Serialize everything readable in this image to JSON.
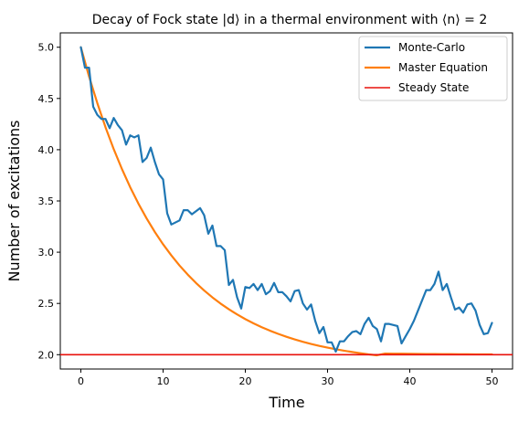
{
  "chart_data": {
    "type": "line",
    "title": "Decay of Fock state |d⟩ in a thermal environment with ⟨n⟩ = 2",
    "xlabel": "Time",
    "ylabel": "Number of excitations",
    "xlim": [
      -2.5,
      52.5
    ],
    "ylim": [
      1.86,
      5.14
    ],
    "xticks": [
      0,
      10,
      20,
      30,
      40,
      50
    ],
    "yticks": [
      2.0,
      2.5,
      3.0,
      3.5,
      4.0,
      4.5,
      5.0
    ],
    "ytick_labels": [
      "2.0",
      "2.5",
      "3.0",
      "3.5",
      "4.0",
      "4.5",
      "5.0"
    ],
    "grid": false,
    "legend_position": "top-right",
    "series": [
      {
        "name": "Monte-Carlo",
        "color": "#1f77b4",
        "x": [
          0,
          0.5,
          1,
          1.5,
          2,
          2.5,
          3,
          3.5,
          4,
          4.5,
          5,
          5.5,
          6,
          6.5,
          7,
          7.5,
          8,
          8.5,
          9,
          9.5,
          10,
          10.5,
          11,
          11.5,
          12,
          12.5,
          13,
          13.5,
          14,
          14.5,
          15,
          15.5,
          16,
          16.5,
          17,
          17.5,
          18,
          18.5,
          19,
          19.5,
          20,
          20.5,
          21,
          21.5,
          22,
          22.5,
          23,
          23.5,
          24,
          24.5,
          25,
          25.5,
          26,
          26.5,
          27,
          27.5,
          28,
          28.5,
          29,
          29.5,
          30,
          30.5,
          31,
          31.5,
          32,
          32.5,
          33,
          33.5,
          34,
          34.5,
          35,
          35.5,
          36,
          36.5,
          37,
          37.5,
          38,
          38.5,
          39,
          39.5,
          40,
          40.5,
          41,
          41.5,
          42,
          42.5,
          43,
          43.5,
          44,
          44.5,
          45,
          45.5,
          46,
          46.5,
          47,
          47.5,
          48,
          48.5,
          49,
          49.5,
          50
        ],
        "y": [
          5.0,
          4.8,
          4.8,
          4.42,
          4.34,
          4.3,
          4.3,
          4.21,
          4.31,
          4.24,
          4.19,
          4.05,
          4.14,
          4.12,
          4.14,
          3.88,
          3.92,
          4.02,
          3.88,
          3.76,
          3.71,
          3.38,
          3.27,
          3.29,
          3.31,
          3.41,
          3.41,
          3.37,
          3.4,
          3.43,
          3.36,
          3.18,
          3.26,
          3.06,
          3.06,
          3.02,
          2.68,
          2.73,
          2.56,
          2.45,
          2.66,
          2.65,
          2.69,
          2.63,
          2.69,
          2.59,
          2.62,
          2.7,
          2.61,
          2.61,
          2.57,
          2.52,
          2.62,
          2.63,
          2.5,
          2.44,
          2.49,
          2.33,
          2.21,
          2.27,
          2.12,
          2.12,
          2.03,
          2.13,
          2.13,
          2.18,
          2.22,
          2.23,
          2.2,
          2.3,
          2.36,
          2.28,
          2.25,
          2.13,
          2.3,
          2.3,
          2.29,
          2.28,
          2.11,
          2.18,
          2.25,
          2.33,
          2.43,
          2.53,
          2.63,
          2.63,
          2.69,
          2.81,
          2.63,
          2.69,
          2.56,
          2.44,
          2.46,
          2.41,
          2.49,
          2.5,
          2.43,
          2.29,
          2.2,
          2.21,
          2.31
        ]
      },
      {
        "name": "Master Equation",
        "color": "#ff7f0e",
        "x": [
          0,
          1,
          2,
          3,
          4,
          5,
          6,
          7,
          8,
          9,
          10,
          11,
          12,
          13,
          14,
          15,
          16,
          17,
          18,
          19,
          20,
          21,
          22,
          23,
          24,
          25,
          26,
          27,
          28,
          29,
          30,
          31,
          32,
          33,
          34,
          35,
          36,
          37,
          38,
          39,
          40,
          41,
          42,
          43,
          44,
          45,
          46,
          47,
          48,
          49,
          50
        ],
        "y": [
          5.0,
          4.714,
          4.455,
          4.219,
          4.005,
          3.811,
          3.634,
          3.474,
          3.329,
          3.197,
          3.077,
          2.969,
          2.87,
          2.781,
          2.7,
          2.626,
          2.559,
          2.498,
          2.443,
          2.393,
          2.347,
          2.306,
          2.268,
          2.234,
          2.203,
          2.175,
          2.149,
          2.126,
          2.105,
          2.086,
          2.069,
          2.053,
          2.039,
          2.026,
          2.014,
          2.003,
          1.994,
          2.011,
          2.01,
          2.009,
          2.008,
          2.007,
          2.006,
          2.006,
          2.005,
          2.005,
          2.004,
          2.004,
          2.003,
          2.003,
          2.003
        ]
      },
      {
        "name": "Steady State",
        "color": "#e8120c",
        "y_constant": 2.0
      }
    ]
  }
}
